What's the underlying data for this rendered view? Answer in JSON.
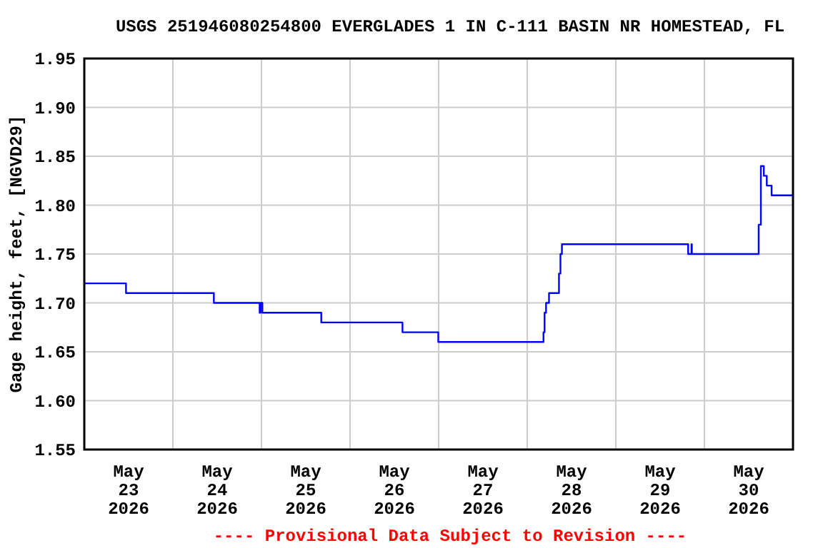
{
  "chart_data": {
    "type": "step",
    "title": "USGS 251946080254800 EVERGLADES 1 IN C-111 BASIN NR HOMESTEAD, FL",
    "ylabel": "Gage height, feet, [NGVD29]",
    "annotations": [
      "---- Provisional Data Subject to Revision ----"
    ],
    "x": [
      "2026-05-23T00:00",
      "2026-05-23T11:18",
      "2026-05-24T11:06",
      "2026-05-24T23:30",
      "2026-05-24T23:45",
      "2026-05-25T00:15",
      "2026-05-25T16:12",
      "2026-05-26T14:12",
      "2026-05-26T23:54",
      "2026-05-28T04:24",
      "2026-05-28T04:42",
      "2026-05-28T05:06",
      "2026-05-28T05:54",
      "2026-05-28T08:36",
      "2026-05-28T09:00",
      "2026-05-28T09:24",
      "2026-05-29T19:36",
      "2026-05-29T20:30",
      "2026-05-29T20:36",
      "2026-05-30T14:42",
      "2026-05-30T15:18",
      "2026-05-30T16:06",
      "2026-05-30T16:54",
      "2026-05-30T18:12",
      "2026-05-30T23:59"
    ],
    "series": [
      {
        "color": "#0000ff",
        "values": [
          1.72,
          1.71,
          1.7,
          1.69,
          1.7,
          1.69,
          1.68,
          1.67,
          1.66,
          1.67,
          1.69,
          1.7,
          1.71,
          1.73,
          1.75,
          1.76,
          1.75,
          1.76,
          1.75,
          1.78,
          1.84,
          1.83,
          1.82,
          1.81,
          1.81
        ]
      }
    ],
    "xlim": [
      "2026-05-23T00:00",
      "2026-05-31T00:00"
    ],
    "xticks": [
      {
        "value": "2026-05-23T12:00",
        "label": "May\n23\n2026"
      },
      {
        "value": "2026-05-24T12:00",
        "label": "May\n24\n2026"
      },
      {
        "value": "2026-05-25T12:00",
        "label": "May\n25\n2026"
      },
      {
        "value": "2026-05-26T12:00",
        "label": "May\n26\n2026"
      },
      {
        "value": "2026-05-27T12:00",
        "label": "May\n27\n2026"
      },
      {
        "value": "2026-05-28T12:00",
        "label": "May\n28\n2026"
      },
      {
        "value": "2026-05-29T12:00",
        "label": "May\n29\n2026"
      },
      {
        "value": "2026-05-30T12:00",
        "label": "May\n30\n2026"
      },
      {
        "value": "2026-05-24T00:00",
        "label": null
      },
      {
        "value": "2026-05-25T00:00",
        "label": null
      },
      {
        "value": "2026-05-26T00:00",
        "label": null
      },
      {
        "value": "2026-05-27T00:00",
        "label": null
      },
      {
        "value": "2026-05-28T00:00",
        "label": null
      },
      {
        "value": "2026-05-29T00:00",
        "label": null
      },
      {
        "value": "2026-05-30T00:00",
        "label": null
      }
    ],
    "ylim": [
      1.55,
      1.95
    ],
    "yticks": [
      {
        "value": 1.55,
        "label": "1.55"
      },
      {
        "value": 1.6,
        "label": "1.60"
      },
      {
        "value": 1.65,
        "label": "1.65"
      },
      {
        "value": 1.7,
        "label": "1.70"
      },
      {
        "value": 1.75,
        "label": "1.75"
      },
      {
        "value": 1.8,
        "label": "1.80"
      },
      {
        "value": 1.85,
        "label": "1.85"
      },
      {
        "value": 1.9,
        "label": "1.90"
      },
      {
        "value": 1.95,
        "label": "1.95"
      }
    ],
    "grid": true,
    "marker": "none",
    "line_style": "solid"
  }
}
